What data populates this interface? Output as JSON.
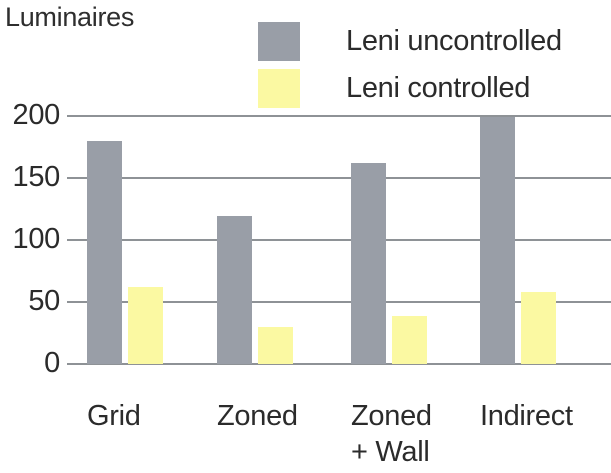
{
  "chart_data": {
    "type": "bar",
    "title": "Luminaires",
    "categories": [
      "Grid",
      "Zoned",
      "Zoned + Wall",
      "Indirect"
    ],
    "categories_display": [
      [
        "Grid"
      ],
      [
        "Zoned"
      ],
      [
        "Zoned",
        "+ Wall"
      ],
      [
        "Indirect"
      ]
    ],
    "series": [
      {
        "name": "Leni uncontrolled",
        "color": "#999ea7",
        "values": [
          180,
          119,
          162,
          199
        ]
      },
      {
        "name": "Leni controlled",
        "color": "#fbf9a2",
        "values": [
          62,
          30,
          39,
          58
        ]
      }
    ],
    "xlabel": "",
    "ylabel": "Luminaires",
    "ylim": [
      0,
      200
    ],
    "yticks": [
      0,
      50,
      100,
      150,
      200
    ],
    "ytick_labels": [
      "0",
      "50",
      "100",
      "150",
      "200"
    ],
    "grid": true,
    "gridline_color": "#8e9296",
    "legend_position": "top",
    "background_color": "#ffffff",
    "text_color": "#2b2b2b"
  }
}
